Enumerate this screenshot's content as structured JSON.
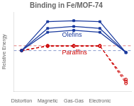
{
  "chart_data": {
    "type": "line",
    "title": "Binding in Fe/MOF-74",
    "y_label": "Relative Energy",
    "x": [
      0,
      1,
      2,
      3,
      4
    ],
    "series": [
      {
        "color": "#1a3a9e",
        "marker": "square",
        "line_style": "solid",
        "values": [
          0.0,
          0.6,
          0.62,
          0.6,
          -0.04
        ]
      },
      {
        "color": "#1a3a9e",
        "marker": "square",
        "line_style": "solid",
        "values": [
          0.0,
          0.46,
          0.5,
          0.46,
          -0.04
        ]
      },
      {
        "color": "#1a3a9e",
        "marker": "square",
        "line_style": "solid",
        "values": [
          0.0,
          0.38,
          0.42,
          0.38,
          -0.04
        ]
      },
      {
        "color": "#cc0000",
        "marker": "open-circle",
        "line_style": "dashed",
        "values": [
          0.0,
          0.1,
          0.1,
          0.1,
          -0.68
        ]
      },
      {
        "color": "#cc0000",
        "marker": "open-circle",
        "line_style": "dashed",
        "values": [
          0.0,
          0.1,
          0.1,
          0.1,
          -0.64
        ]
      },
      {
        "color": "#cc0000",
        "marker": "open-circle",
        "line_style": "dashed",
        "values": [
          0.0,
          0.09,
          0.09,
          0.09,
          -0.6
        ]
      }
    ],
    "hlines": [
      {
        "y": 0.0,
        "color": "#1a3a9e",
        "line_style": "dashed"
      },
      {
        "y": 0.1,
        "color": "#cc0000",
        "line_style": "dashed"
      }
    ],
    "annotations": [
      {
        "text": "Olefins",
        "x": 1.55,
        "y": 0.39,
        "color": "#1a3a9e"
      },
      {
        "text": "Paraffins",
        "x": 1.55,
        "y": 0.02,
        "color": "#cc0000"
      }
    ],
    "xlim": [
      -0.3,
      4.2
    ],
    "xticks": [
      {
        "value": 0,
        "label": "Distortion"
      },
      {
        "value": 1,
        "label": "Magnetic"
      },
      {
        "value": 2,
        "label": "Gas-Gas"
      },
      {
        "value": 3,
        "label": "Electronic"
      }
    ],
    "ylim": [
      -0.85,
      0.8
    ],
    "tick_labels": "x",
    "grid": false
  }
}
